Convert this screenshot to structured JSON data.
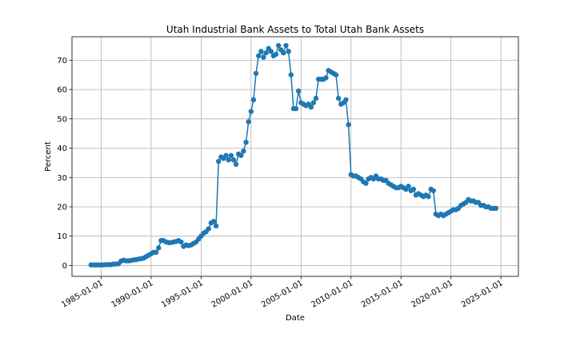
{
  "chart_data": {
    "type": "line",
    "title": "Utah Industrial Bank Assets to Total Utah Bank Assets",
    "xlabel": "Date",
    "ylabel": "Percent",
    "color": "#1f77b4",
    "grid": true,
    "marker": "o",
    "xlim": [
      "1982-02-01",
      "2026-10-01"
    ],
    "ylim": [
      -3.7,
      78.0
    ],
    "xticks": [
      "1985-01-01",
      "1990-01-01",
      "1995-01-01",
      "2000-01-01",
      "2005-01-01",
      "2010-01-01",
      "2015-01-01",
      "2020-01-01",
      "2025-01-01"
    ],
    "yticks": [
      0,
      10,
      20,
      30,
      40,
      50,
      60,
      70
    ],
    "x": [
      "1984-01-01",
      "1984-04-01",
      "1984-07-01",
      "1984-10-01",
      "1985-01-01",
      "1985-04-01",
      "1985-07-01",
      "1985-10-01",
      "1986-01-01",
      "1986-04-01",
      "1986-07-01",
      "1986-10-01",
      "1987-01-01",
      "1987-04-01",
      "1987-07-01",
      "1987-10-01",
      "1988-01-01",
      "1988-04-01",
      "1988-07-01",
      "1988-10-01",
      "1989-01-01",
      "1989-04-01",
      "1989-07-01",
      "1989-10-01",
      "1990-01-01",
      "1990-04-01",
      "1990-07-01",
      "1990-10-01",
      "1991-01-01",
      "1991-04-01",
      "1991-07-01",
      "1991-10-01",
      "1992-01-01",
      "1992-04-01",
      "1992-07-01",
      "1992-10-01",
      "1993-01-01",
      "1993-04-01",
      "1993-07-01",
      "1993-10-01",
      "1994-01-01",
      "1994-04-01",
      "1994-07-01",
      "1994-10-01",
      "1995-01-01",
      "1995-04-01",
      "1995-07-01",
      "1995-10-01",
      "1996-01-01",
      "1996-04-01",
      "1996-07-01",
      "1996-10-01",
      "1997-01-01",
      "1997-04-01",
      "1997-07-01",
      "1997-10-01",
      "1998-01-01",
      "1998-04-01",
      "1998-07-01",
      "1998-10-01",
      "1999-01-01",
      "1999-04-01",
      "1999-07-01",
      "1999-10-01",
      "2000-01-01",
      "2000-04-01",
      "2000-07-01",
      "2000-10-01",
      "2001-01-01",
      "2001-04-01",
      "2001-07-01",
      "2001-10-01",
      "2002-01-01",
      "2002-04-01",
      "2002-07-01",
      "2002-10-01",
      "2003-01-01",
      "2003-04-01",
      "2003-07-01",
      "2003-10-01",
      "2004-01-01",
      "2004-04-01",
      "2004-07-01",
      "2004-10-01",
      "2005-01-01",
      "2005-04-01",
      "2005-07-01",
      "2005-10-01",
      "2006-01-01",
      "2006-04-01",
      "2006-07-01",
      "2006-10-01",
      "2007-01-01",
      "2007-04-01",
      "2007-07-01",
      "2007-10-01",
      "2008-01-01",
      "2008-04-01",
      "2008-07-01",
      "2008-10-01",
      "2009-01-01",
      "2009-04-01",
      "2009-07-01",
      "2009-10-01",
      "2010-01-01",
      "2010-04-01",
      "2010-07-01",
      "2010-10-01",
      "2011-01-01",
      "2011-04-01",
      "2011-07-01",
      "2011-10-01",
      "2012-01-01",
      "2012-04-01",
      "2012-07-01",
      "2012-10-01",
      "2013-01-01",
      "2013-04-01",
      "2013-07-01",
      "2013-10-01",
      "2014-01-01",
      "2014-04-01",
      "2014-07-01",
      "2014-10-01",
      "2015-01-01",
      "2015-04-01",
      "2015-07-01",
      "2015-10-01",
      "2016-01-01",
      "2016-04-01",
      "2016-07-01",
      "2016-10-01",
      "2017-01-01",
      "2017-04-01",
      "2017-07-01",
      "2017-10-01",
      "2018-01-01",
      "2018-04-01",
      "2018-07-01",
      "2018-10-01",
      "2019-01-01",
      "2019-04-01",
      "2019-07-01",
      "2019-10-01",
      "2020-01-01",
      "2020-04-01",
      "2020-07-01",
      "2020-10-01",
      "2021-01-01",
      "2021-04-01",
      "2021-07-01",
      "2021-10-01",
      "2022-01-01",
      "2022-04-01",
      "2022-07-01",
      "2022-10-01",
      "2023-01-01",
      "2023-04-01",
      "2023-07-01",
      "2023-10-01",
      "2024-01-01",
      "2024-04-01",
      "2024-07-01"
    ],
    "values": [
      0.2,
      0.2,
      0.2,
      0.2,
      0.2,
      0.2,
      0.3,
      0.3,
      0.3,
      0.5,
      0.5,
      0.6,
      1.5,
      1.8,
      1.6,
      1.6,
      1.7,
      1.9,
      2.0,
      2.2,
      2.3,
      2.5,
      3.0,
      3.5,
      4.0,
      4.5,
      4.5,
      6.0,
      8.5,
      8.5,
      8.0,
      7.8,
      7.8,
      8.0,
      8.2,
      8.5,
      8.0,
      6.5,
      7.0,
      6.8,
      7.0,
      7.5,
      8.0,
      9.0,
      10.0,
      11.0,
      11.5,
      12.5,
      14.5,
      15.0,
      13.5,
      35.5,
      37.0,
      36.5,
      37.5,
      36.0,
      37.5,
      36.0,
      34.5,
      38.0,
      37.5,
      39.0,
      42.0,
      49.0,
      52.5,
      56.5,
      65.5,
      71.5,
      73.0,
      71.0,
      72.5,
      74.0,
      73.0,
      71.5,
      72.0,
      75.0,
      73.5,
      72.5,
      75.0,
      73.0,
      65.0,
      53.5,
      53.5,
      59.5,
      55.5,
      55.0,
      54.5,
      55.0,
      54.0,
      55.5,
      57.0,
      63.5,
      63.5,
      63.5,
      64.0,
      66.5,
      66.0,
      65.5,
      65.0,
      57.0,
      55.0,
      55.5,
      56.5,
      48.0,
      31.0,
      30.5,
      30.5,
      30.0,
      29.5,
      28.5,
      28.0,
      29.5,
      30.0,
      29.5,
      30.5,
      29.5,
      29.5,
      29.0,
      29.0,
      28.0,
      27.5,
      27.0,
      26.5,
      26.5,
      27.0,
      26.5,
      26.0,
      27.0,
      25.5,
      26.0,
      24.0,
      24.5,
      24.0,
      23.5,
      24.0,
      23.5,
      26.0,
      25.5,
      17.5,
      17.0,
      17.5,
      17.0,
      17.5,
      18.0,
      18.5,
      19.0,
      19.0,
      19.5,
      20.5,
      21.0,
      21.5,
      22.5,
      22.0,
      22.0,
      21.5,
      21.5,
      20.5,
      20.5,
      20.0,
      20.0,
      19.5,
      19.5,
      19.5
    ]
  }
}
